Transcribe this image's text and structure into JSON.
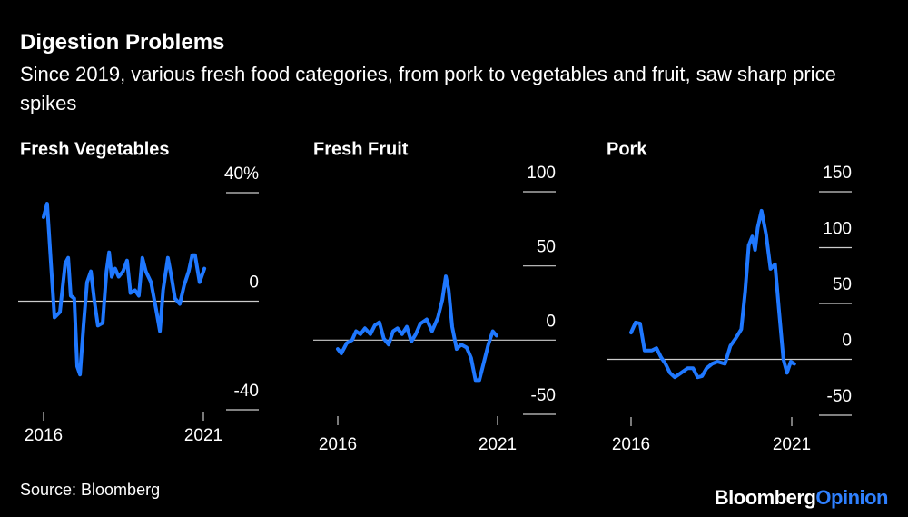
{
  "title": "Digestion Problems",
  "subtitle": "Since 2019, various fresh food categories, from pork to vegetables and fruit, saw sharp price spikes",
  "source": "Source: Bloomberg",
  "brand": [
    "Bloomberg",
    "Opinion"
  ],
  "chart_data": [
    {
      "type": "line",
      "title": "Fresh Vegetables",
      "xlim": [
        2016,
        2021
      ],
      "xticks": [
        2016,
        2021
      ],
      "ylim": [
        -40,
        40
      ],
      "yticks": [
        {
          "value": 40,
          "label": "40%"
        },
        0,
        -40
      ],
      "series": [
        {
          "name": "Fresh Vegetables",
          "color": "#1f78ff",
          "x": [
            2016.0,
            2016.11,
            2016.23,
            2016.34,
            2016.51,
            2016.68,
            2016.77,
            2016.85,
            2016.96,
            2017.05,
            2017.14,
            2017.25,
            2017.36,
            2017.48,
            2017.59,
            2017.7,
            2017.85,
            2017.97,
            2018.05,
            2018.13,
            2018.24,
            2018.35,
            2018.49,
            2018.61,
            2018.72,
            2018.86,
            2018.98,
            2019.09,
            2019.2,
            2019.36,
            2019.52,
            2019.64,
            2019.74,
            2019.89,
            2020.0,
            2020.11,
            2020.26,
            2020.4,
            2020.54,
            2020.65,
            2020.74,
            2020.88,
            2021.03
          ],
          "values": [
            31,
            36,
            14,
            -6,
            -4,
            14,
            16,
            2,
            1,
            -24,
            -27,
            -9,
            7,
            11,
            0,
            -9,
            -8,
            11,
            18,
            9,
            12,
            9,
            11,
            15,
            3,
            4,
            2,
            16,
            11,
            7,
            -3,
            -11,
            4,
            16,
            9,
            1,
            -1,
            6,
            11,
            17,
            17,
            7,
            12
          ]
        }
      ]
    },
    {
      "type": "line",
      "title": "Fresh Fruit",
      "xlim": [
        2016,
        2021
      ],
      "xticks": [
        2016,
        2021
      ],
      "ylim": [
        -50,
        100
      ],
      "yticks": [
        100,
        50,
        0,
        -50
      ],
      "series": [
        {
          "name": "Fresh Fruit",
          "color": "#1f78ff",
          "x": [
            2016.0,
            2016.11,
            2016.28,
            2016.45,
            2016.57,
            2016.71,
            2016.85,
            2017.02,
            2017.16,
            2017.3,
            2017.44,
            2017.59,
            2017.73,
            2017.87,
            2018.01,
            2018.16,
            2018.3,
            2018.44,
            2018.58,
            2018.78,
            2018.95,
            2019.13,
            2019.27,
            2019.38,
            2019.47,
            2019.58,
            2019.72,
            2019.86,
            2020.03,
            2020.17,
            2020.31,
            2020.43,
            2020.57,
            2020.71,
            2020.85,
            2020.97
          ],
          "values": [
            -6,
            -9,
            -2,
            0,
            6,
            4,
            8,
            4,
            10,
            12,
            1,
            -3,
            6,
            8,
            4,
            9,
            -1,
            4,
            11,
            14,
            6,
            15,
            27,
            43,
            34,
            9,
            -6,
            -3,
            -5,
            -12,
            -27,
            -27,
            -15,
            -3,
            6,
            3
          ]
        }
      ]
    },
    {
      "type": "line",
      "title": "Pork",
      "xlim": [
        2016,
        2021
      ],
      "xticks": [
        2016,
        2021
      ],
      "ylim": [
        -50,
        150
      ],
      "yticks": [
        150,
        100,
        50,
        0,
        -50
      ],
      "series": [
        {
          "name": "Pork",
          "color": "#1f78ff",
          "x": [
            2016.0,
            2016.14,
            2016.28,
            2016.42,
            2016.65,
            2016.79,
            2016.93,
            2017.07,
            2017.21,
            2017.36,
            2017.56,
            2017.76,
            2017.93,
            2018.07,
            2018.21,
            2018.35,
            2018.52,
            2018.69,
            2018.92,
            2019.09,
            2019.26,
            2019.43,
            2019.55,
            2019.66,
            2019.77,
            2019.86,
            2019.94,
            2020.06,
            2020.2,
            2020.34,
            2020.48,
            2020.6,
            2020.74,
            2020.85,
            2020.97,
            2021.08
          ],
          "values": [
            24,
            33,
            32,
            8,
            8,
            10,
            2,
            -4,
            -12,
            -16,
            -12,
            -8,
            -8,
            -16,
            -15,
            -8,
            -4,
            -2,
            -4,
            12,
            19,
            27,
            61,
            102,
            110,
            98,
            118,
            133,
            112,
            81,
            85,
            45,
            0,
            -12,
            -2,
            -4
          ]
        }
      ]
    }
  ]
}
